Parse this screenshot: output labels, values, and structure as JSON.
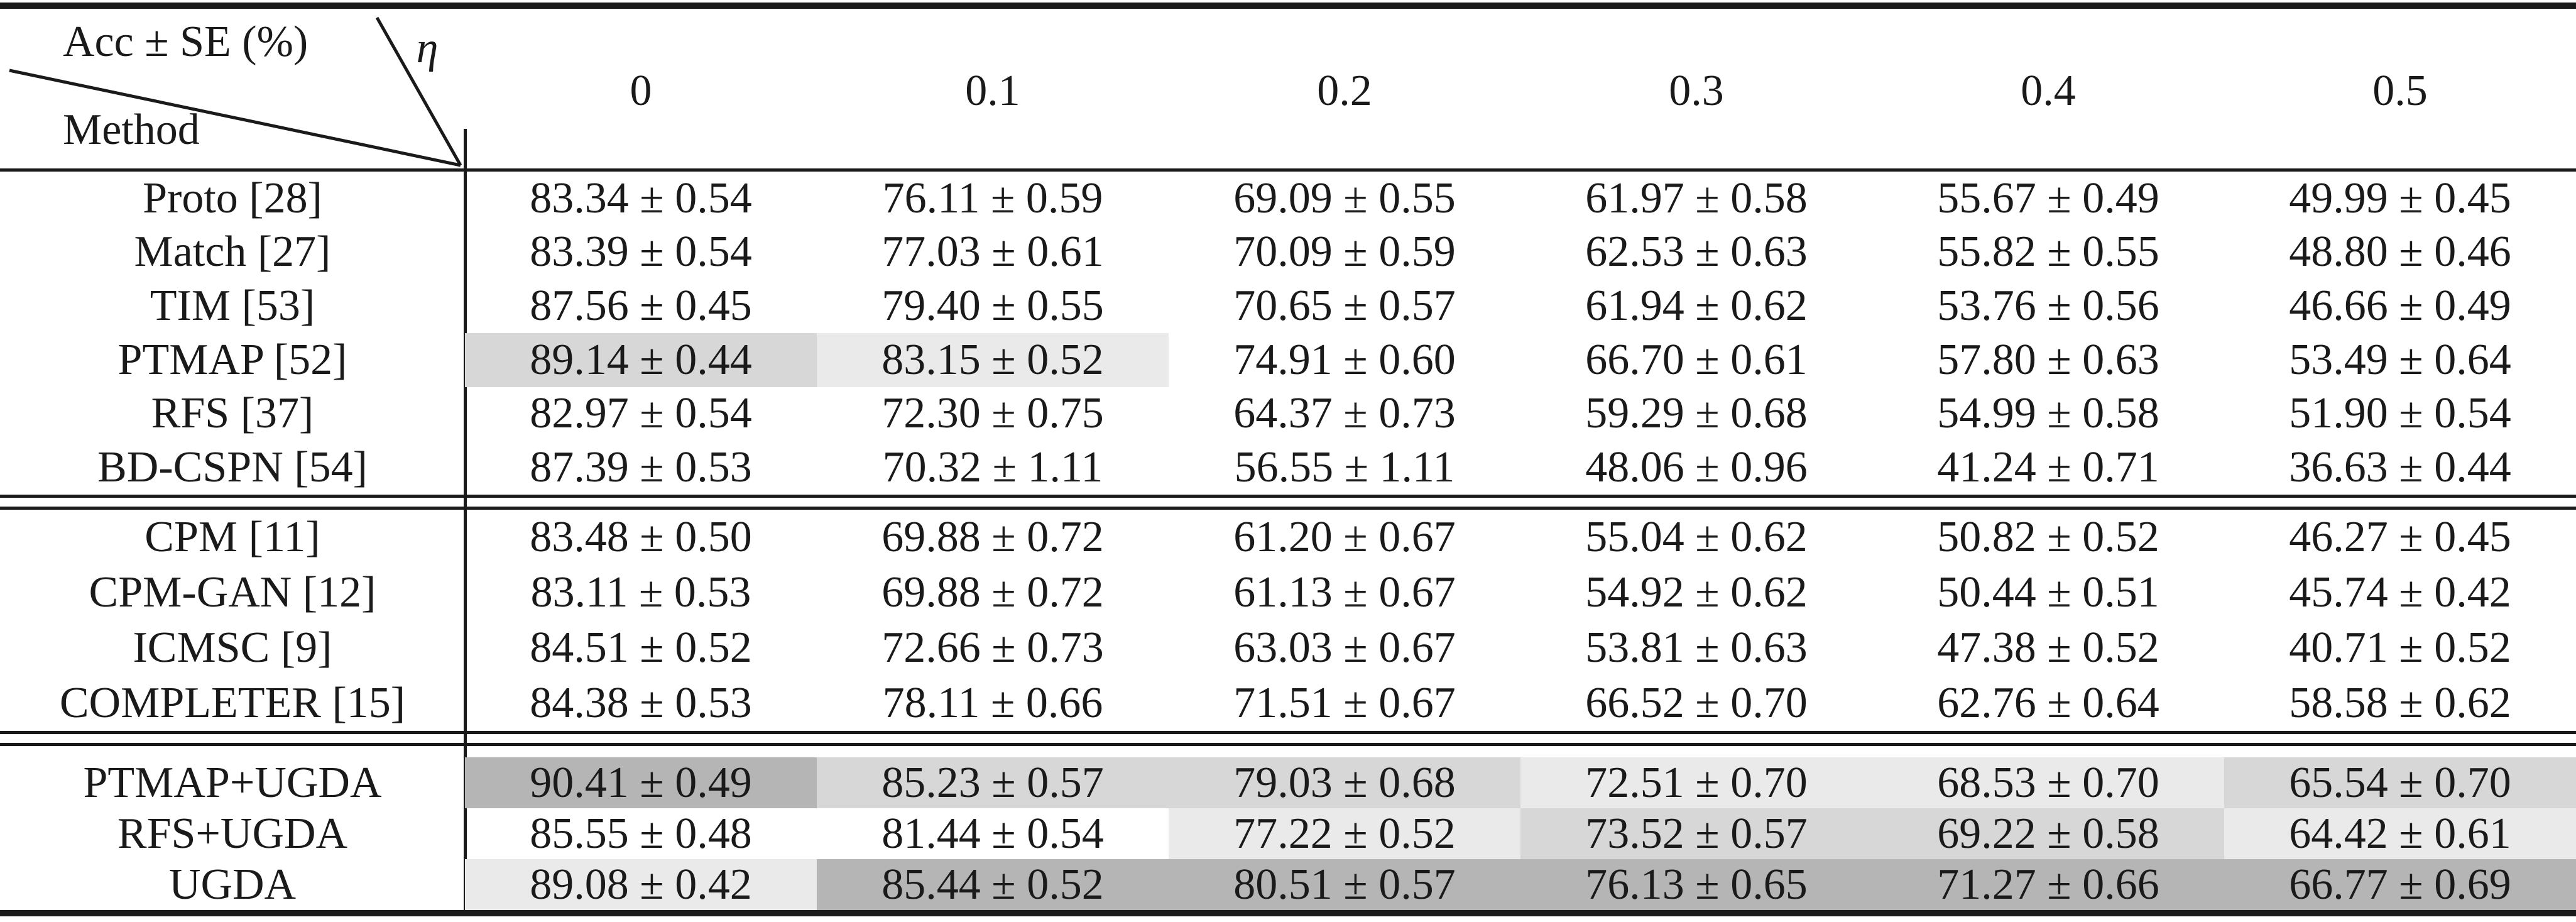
{
  "corner": {
    "acc_label": "Acc ± SE (%)",
    "eta_label": "η",
    "method_label": "Method"
  },
  "columns": [
    "0",
    "0.1",
    "0.2",
    "0.3",
    "0.4",
    "0.5"
  ],
  "highlight_colors": {
    "dark": "#b5b5b5",
    "medium": "#d7d7d7",
    "light": "#eaeaea"
  },
  "groups": [
    {
      "rows": [
        {
          "method": "Proto [28]",
          "cells": [
            {
              "text": "83.34 ± 0.54",
              "hl": "none"
            },
            {
              "text": "76.11 ± 0.59",
              "hl": "none"
            },
            {
              "text": "69.09 ± 0.55",
              "hl": "none"
            },
            {
              "text": "61.97 ± 0.58",
              "hl": "none"
            },
            {
              "text": "55.67 ± 0.49",
              "hl": "none"
            },
            {
              "text": "49.99 ± 0.45",
              "hl": "none"
            }
          ]
        },
        {
          "method": "Match [27]",
          "cells": [
            {
              "text": "83.39 ± 0.54",
              "hl": "none"
            },
            {
              "text": "77.03 ± 0.61",
              "hl": "none"
            },
            {
              "text": "70.09 ± 0.59",
              "hl": "none"
            },
            {
              "text": "62.53 ± 0.63",
              "hl": "none"
            },
            {
              "text": "55.82 ± 0.55",
              "hl": "none"
            },
            {
              "text": "48.80 ± 0.46",
              "hl": "none"
            }
          ]
        },
        {
          "method": "TIM [53]",
          "cells": [
            {
              "text": "87.56 ± 0.45",
              "hl": "none"
            },
            {
              "text": "79.40 ± 0.55",
              "hl": "none"
            },
            {
              "text": "70.65 ± 0.57",
              "hl": "none"
            },
            {
              "text": "61.94 ± 0.62",
              "hl": "none"
            },
            {
              "text": "53.76 ± 0.56",
              "hl": "none"
            },
            {
              "text": "46.66 ± 0.49",
              "hl": "none"
            }
          ]
        },
        {
          "method": "PTMAP [52]",
          "cells": [
            {
              "text": "89.14 ± 0.44",
              "hl": "medium"
            },
            {
              "text": "83.15 ± 0.52",
              "hl": "light"
            },
            {
              "text": "74.91 ± 0.60",
              "hl": "none"
            },
            {
              "text": "66.70 ± 0.61",
              "hl": "none"
            },
            {
              "text": "57.80 ± 0.63",
              "hl": "none"
            },
            {
              "text": "53.49 ± 0.64",
              "hl": "none"
            }
          ]
        },
        {
          "method": "RFS [37]",
          "cells": [
            {
              "text": "82.97 ± 0.54",
              "hl": "none"
            },
            {
              "text": "72.30 ± 0.75",
              "hl": "none"
            },
            {
              "text": "64.37 ± 0.73",
              "hl": "none"
            },
            {
              "text": "59.29 ± 0.68",
              "hl": "none"
            },
            {
              "text": "54.99 ± 0.58",
              "hl": "none"
            },
            {
              "text": "51.90 ± 0.54",
              "hl": "none"
            }
          ]
        },
        {
          "method": "BD-CSPN [54]",
          "cells": [
            {
              "text": "87.39 ± 0.53",
              "hl": "none"
            },
            {
              "text": "70.32 ± 1.11",
              "hl": "none"
            },
            {
              "text": "56.55 ± 1.11",
              "hl": "none"
            },
            {
              "text": "48.06 ± 0.96",
              "hl": "none"
            },
            {
              "text": "41.24 ± 0.71",
              "hl": "none"
            },
            {
              "text": "36.63 ± 0.44",
              "hl": "none"
            }
          ]
        }
      ]
    },
    {
      "rows": [
        {
          "method": "CPM [11]",
          "cells": [
            {
              "text": "83.48 ± 0.50",
              "hl": "none"
            },
            {
              "text": "69.88 ± 0.72",
              "hl": "none"
            },
            {
              "text": "61.20 ± 0.67",
              "hl": "none"
            },
            {
              "text": "55.04 ± 0.62",
              "hl": "none"
            },
            {
              "text": "50.82 ± 0.52",
              "hl": "none"
            },
            {
              "text": "46.27 ± 0.45",
              "hl": "none"
            }
          ]
        },
        {
          "method": "CPM-GAN [12]",
          "cells": [
            {
              "text": "83.11 ± 0.53",
              "hl": "none"
            },
            {
              "text": "69.88 ± 0.72",
              "hl": "none"
            },
            {
              "text": "61.13 ± 0.67",
              "hl": "none"
            },
            {
              "text": "54.92 ± 0.62",
              "hl": "none"
            },
            {
              "text": "50.44 ± 0.51",
              "hl": "none"
            },
            {
              "text": "45.74 ± 0.42",
              "hl": "none"
            }
          ]
        },
        {
          "method": "ICMSC [9]",
          "cells": [
            {
              "text": "84.51 ± 0.52",
              "hl": "none"
            },
            {
              "text": "72.66 ± 0.73",
              "hl": "none"
            },
            {
              "text": "63.03 ± 0.67",
              "hl": "none"
            },
            {
              "text": "53.81 ± 0.63",
              "hl": "none"
            },
            {
              "text": "47.38 ± 0.52",
              "hl": "none"
            },
            {
              "text": "40.71 ± 0.52",
              "hl": "none"
            }
          ]
        },
        {
          "method": "COMPLETER [15]",
          "cells": [
            {
              "text": "84.38 ± 0.53",
              "hl": "none"
            },
            {
              "text": "78.11 ± 0.66",
              "hl": "none"
            },
            {
              "text": "71.51 ± 0.67",
              "hl": "none"
            },
            {
              "text": "66.52 ± 0.70",
              "hl": "none"
            },
            {
              "text": "62.76 ± 0.64",
              "hl": "none"
            },
            {
              "text": "58.58 ± 0.62",
              "hl": "none"
            }
          ]
        }
      ]
    },
    {
      "rows": [
        {
          "method": "PTMAP+UGDA",
          "cells": [
            {
              "text": "90.41 ± 0.49",
              "hl": "dark"
            },
            {
              "text": "85.23 ± 0.57",
              "hl": "medium"
            },
            {
              "text": "79.03 ± 0.68",
              "hl": "medium"
            },
            {
              "text": "72.51 ± 0.70",
              "hl": "light"
            },
            {
              "text": "68.53 ± 0.70",
              "hl": "light"
            },
            {
              "text": "65.54 ± 0.70",
              "hl": "medium"
            }
          ]
        },
        {
          "method": "RFS+UGDA",
          "cells": [
            {
              "text": "85.55 ± 0.48",
              "hl": "none"
            },
            {
              "text": "81.44 ± 0.54",
              "hl": "none"
            },
            {
              "text": "77.22 ± 0.52",
              "hl": "light"
            },
            {
              "text": "73.52 ± 0.57",
              "hl": "medium"
            },
            {
              "text": "69.22 ± 0.58",
              "hl": "medium"
            },
            {
              "text": "64.42 ± 0.61",
              "hl": "light"
            }
          ]
        },
        {
          "method": "UGDA",
          "cells": [
            {
              "text": "89.08 ± 0.42",
              "hl": "light"
            },
            {
              "text": "85.44 ± 0.52",
              "hl": "dark"
            },
            {
              "text": "80.51 ± 0.57",
              "hl": "dark"
            },
            {
              "text": "76.13 ± 0.65",
              "hl": "dark"
            },
            {
              "text": "71.27 ± 0.66",
              "hl": "dark"
            },
            {
              "text": "66.77 ± 0.69",
              "hl": "dark"
            }
          ]
        }
      ]
    }
  ]
}
